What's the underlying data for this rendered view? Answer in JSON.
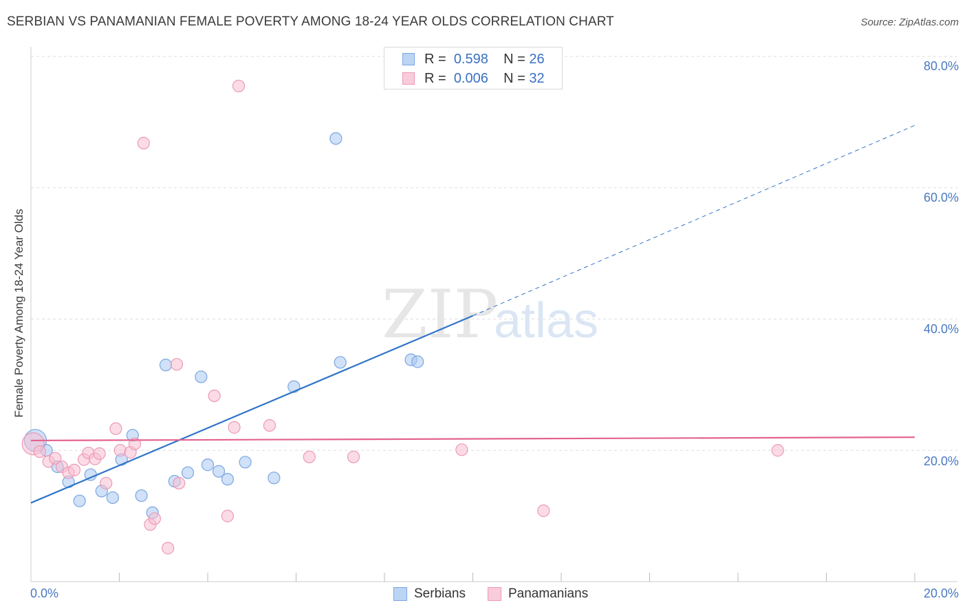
{
  "title": "SERBIAN VS PANAMANIAN FEMALE POVERTY AMONG 18-24 YEAR OLDS CORRELATION CHART",
  "source": "Source: ZipAtlas.com",
  "watermark": {
    "part1": "ZIP",
    "part2": "atlas"
  },
  "legend": {
    "row1": {
      "r_label": "R =",
      "r_value": "0.598",
      "n_label": "N =",
      "n_value": "26"
    },
    "row2": {
      "r_label": "R =",
      "r_value": "0.006",
      "n_label": "N =",
      "n_value": "32"
    }
  },
  "bottom_legend": {
    "serbians": "Serbians",
    "panamanians": "Panamanians"
  },
  "colors": {
    "serbian_fill": "#a9c9f2",
    "serbian_stroke": "#7aa6e0",
    "serbian_line": "#2f74c8",
    "panamanian_fill": "#f7bfd1",
    "panamanian_stroke": "#ec99b5",
    "panamanian_line": "#e3628f",
    "grid": "#dddddd",
    "tick_text": "#4a78c2"
  },
  "chart_data": {
    "type": "scatter",
    "title": "SERBIAN VS PANAMANIAN FEMALE POVERTY AMONG 18-24 YEAR OLDS CORRELATION CHART",
    "xlabel": "",
    "ylabel": "Female Poverty Among 18-24 Year Olds",
    "xlim": [
      0,
      20
    ],
    "ylim": [
      0,
      80
    ],
    "x_tick_labels": [
      "0.0%",
      "20.0%"
    ],
    "y_ticks": [
      20,
      40,
      60,
      80
    ],
    "y_tick_labels": [
      "20.0%",
      "40.0%",
      "60.0%",
      "80.0%"
    ],
    "series": [
      {
        "name": "Serbians",
        "R": 0.598,
        "N": 26,
        "points": [
          [
            0.1,
            21.5
          ],
          [
            0.35,
            20.0
          ],
          [
            0.6,
            17.5
          ],
          [
            0.85,
            15.2
          ],
          [
            1.1,
            12.3
          ],
          [
            1.35,
            16.3
          ],
          [
            1.6,
            13.8
          ],
          [
            1.85,
            12.8
          ],
          [
            2.05,
            18.6
          ],
          [
            2.3,
            22.3
          ],
          [
            2.5,
            13.1
          ],
          [
            2.75,
            10.5
          ],
          [
            3.05,
            33.0
          ],
          [
            3.25,
            15.3
          ],
          [
            3.55,
            16.6
          ],
          [
            3.85,
            31.2
          ],
          [
            4.0,
            17.8
          ],
          [
            4.25,
            16.8
          ],
          [
            4.45,
            15.6
          ],
          [
            4.85,
            18.2
          ],
          [
            5.5,
            15.8
          ],
          [
            5.95,
            29.7
          ],
          [
            6.9,
            67.5
          ],
          [
            7.0,
            33.4
          ],
          [
            8.6,
            33.8
          ],
          [
            8.75,
            33.5
          ]
        ],
        "trend": {
          "x0": 0,
          "y0": 12.0,
          "x1": 10.0,
          "y1": 40.5,
          "dash_to_x": 20.0,
          "dash_to_y": 69.5
        }
      },
      {
        "name": "Panamanians",
        "R": 0.006,
        "N": 32,
        "points": [
          [
            0.05,
            21.0
          ],
          [
            0.2,
            19.8
          ],
          [
            0.4,
            18.3
          ],
          [
            0.55,
            18.8
          ],
          [
            0.7,
            17.5
          ],
          [
            0.85,
            16.6
          ],
          [
            0.98,
            17.0
          ],
          [
            1.2,
            18.6
          ],
          [
            1.3,
            19.6
          ],
          [
            1.45,
            18.7
          ],
          [
            1.55,
            19.5
          ],
          [
            1.7,
            15.0
          ],
          [
            1.92,
            23.3
          ],
          [
            2.02,
            20.0
          ],
          [
            2.25,
            19.7
          ],
          [
            2.35,
            21.0
          ],
          [
            2.55,
            66.8
          ],
          [
            2.7,
            8.7
          ],
          [
            2.8,
            9.6
          ],
          [
            3.1,
            5.1
          ],
          [
            3.3,
            33.1
          ],
          [
            3.35,
            15.0
          ],
          [
            4.15,
            28.3
          ],
          [
            4.45,
            10.0
          ],
          [
            4.6,
            23.5
          ],
          [
            4.7,
            75.5
          ],
          [
            5.4,
            23.8
          ],
          [
            6.3,
            19.0
          ],
          [
            7.3,
            19.0
          ],
          [
            9.75,
            20.1
          ],
          [
            11.6,
            10.8
          ],
          [
            16.9,
            20.0
          ]
        ],
        "trend": {
          "x0": 0,
          "y0": 21.5,
          "x1": 20.0,
          "y1": 22.0
        }
      }
    ]
  }
}
